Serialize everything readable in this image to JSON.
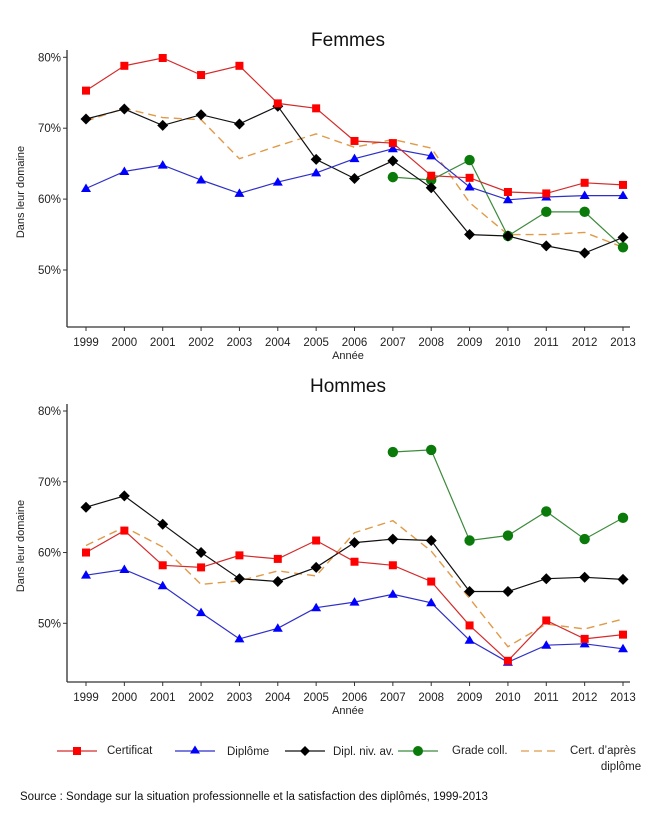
{
  "chart_data": [
    {
      "type": "line",
      "title": "Femmes",
      "xlabel": "Année",
      "ylabel": "Dans leur domaine",
      "x": [
        1999,
        2000,
        2001,
        2002,
        2003,
        2004,
        2005,
        2006,
        2007,
        2008,
        2009,
        2010,
        2011,
        2012,
        2013
      ],
      "yticks": [
        "50%",
        "60%",
        "70%",
        "80%"
      ],
      "ytick_values": [
        50,
        60,
        70,
        80
      ],
      "ylim": [
        42.4,
        81
      ],
      "grid": false,
      "series": [
        {
          "key": "certificat",
          "name": "Certificat",
          "values": [
            75.3,
            78.8,
            79.9,
            77.5,
            78.8,
            73.5,
            72.8,
            68.2,
            67.9,
            63.3,
            63.0,
            61.0,
            60.8,
            62.3,
            62.0
          ]
        },
        {
          "key": "diplome",
          "name": "Diplôme",
          "values": [
            61.5,
            63.9,
            64.8,
            62.7,
            60.8,
            62.4,
            63.7,
            65.7,
            67.1,
            66.1,
            61.7,
            59.9,
            60.3,
            60.5,
            60.5
          ]
        },
        {
          "key": "dipl_niv_av",
          "name": "Dipl. niv. av.",
          "values": [
            71.3,
            72.7,
            70.4,
            71.9,
            70.6,
            73.1,
            65.6,
            62.9,
            65.4,
            61.6,
            55.0,
            54.8,
            53.4,
            52.4,
            54.6
          ]
        },
        {
          "key": "grade_coll",
          "name": "Grade coll.",
          "values": [
            null,
            null,
            null,
            null,
            null,
            null,
            null,
            null,
            63.1,
            62.7,
            65.5,
            54.8,
            58.2,
            58.2,
            53.2
          ]
        },
        {
          "key": "cert_apres",
          "name": "Cert. d’après diplôme",
          "values": [
            71.0,
            72.8,
            71.5,
            71.2,
            65.7,
            67.5,
            69.2,
            67.3,
            68.4,
            67.2,
            59.5,
            55.0,
            55.0,
            55.3,
            53.2
          ]
        }
      ]
    },
    {
      "type": "line",
      "title": "Hommes",
      "xlabel": "Année",
      "ylabel": "Dans leur domaine",
      "x": [
        1999,
        2000,
        2001,
        2002,
        2003,
        2004,
        2005,
        2006,
        2007,
        2008,
        2009,
        2010,
        2011,
        2012,
        2013
      ],
      "yticks": [
        "50%",
        "60%",
        "70%",
        "80%"
      ],
      "ytick_values": [
        50,
        60,
        70,
        80
      ],
      "ylim": [
        41.8,
        81
      ],
      "grid": false,
      "series": [
        {
          "key": "certificat",
          "name": "Certificat",
          "values": [
            60.0,
            63.1,
            58.2,
            57.9,
            59.6,
            59.1,
            61.7,
            58.7,
            58.2,
            55.9,
            49.7,
            44.7,
            50.4,
            47.8,
            48.4
          ]
        },
        {
          "key": "diplome",
          "name": "Diplôme",
          "values": [
            56.8,
            57.6,
            55.3,
            51.5,
            47.8,
            49.3,
            52.2,
            53.0,
            54.1,
            52.9,
            47.6,
            44.5,
            46.9,
            47.1,
            46.4
          ]
        },
        {
          "key": "dipl_niv_av",
          "name": "Dipl. niv. av.",
          "values": [
            66.4,
            68.0,
            64.0,
            60.0,
            56.3,
            55.9,
            57.9,
            61.4,
            61.9,
            61.7,
            54.5,
            54.5,
            56.3,
            56.5,
            56.2
          ]
        },
        {
          "key": "grade_coll",
          "name": "Grade coll.",
          "values": [
            null,
            null,
            null,
            null,
            null,
            null,
            null,
            null,
            74.2,
            74.5,
            61.7,
            62.4,
            65.8,
            61.9,
            64.9
          ]
        },
        {
          "key": "cert_apres",
          "name": "Cert. d’après diplôme",
          "values": [
            61.0,
            63.6,
            60.8,
            55.5,
            56.0,
            57.4,
            56.7,
            62.8,
            64.5,
            60.2,
            53.5,
            46.7,
            49.9,
            49.2,
            50.6
          ]
        }
      ]
    }
  ],
  "legend": {
    "placement": "bottom",
    "items": [
      {
        "key": "certificat",
        "label": "Certificat",
        "marker": "square",
        "color": "#ff0000",
        "line_color": "#d42a2a",
        "dashed": false
      },
      {
        "key": "diplome",
        "label": "Diplôme",
        "marker": "triangle",
        "color": "#0000ff",
        "line_color": "#2f2fc8",
        "dashed": false
      },
      {
        "key": "dipl_niv_av",
        "label": "Dipl. niv. av.",
        "marker": "diamond",
        "color": "#000000",
        "line_color": "#111111",
        "dashed": false
      },
      {
        "key": "grade_coll",
        "label": "Grade coll.",
        "marker": "circle",
        "color": "#0a7a0a",
        "line_color": "#3c8a3c",
        "dashed": false
      },
      {
        "key": "cert_apres",
        "label_line1": "Cert. d’après",
        "label_line2": "diplôme",
        "marker": "none",
        "color": "#e8a04a",
        "line_color": "#e09a48",
        "dashed": true
      }
    ]
  },
  "source": "Source : Sondage sur la situation professionnelle et la satisfaction des diplômés, 1999-2013"
}
